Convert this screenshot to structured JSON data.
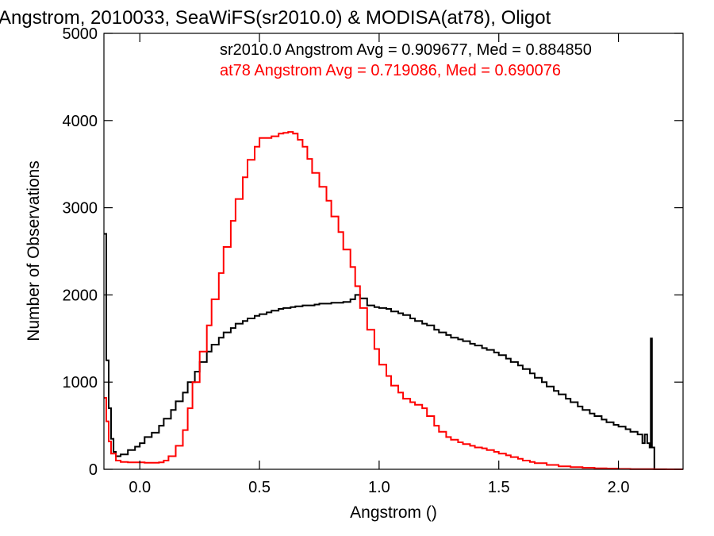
{
  "chart_data": {
    "type": "line",
    "title": "Angstrom, 2010033, SeaWiFS(sr2010.0) & MODISA(at78), Oligot",
    "xlabel": "Angstrom ()",
    "ylabel": "Number of Observations",
    "xlim": [
      -0.15,
      2.27
    ],
    "ylim": [
      0,
      5000
    ],
    "x_ticks": [
      0.0,
      0.5,
      1.0,
      1.5,
      2.0
    ],
    "x_tick_labels": [
      "0.0",
      "0.5",
      "1.0",
      "1.5",
      "2.0"
    ],
    "y_ticks": [
      0,
      1000,
      2000,
      3000,
      4000,
      5000
    ],
    "y_tick_labels": [
      "0",
      "1000",
      "2000",
      "3000",
      "4000",
      "5000"
    ],
    "legend_placement": "top-right",
    "annotations": [
      {
        "text": "sr2010.0 Angstrom Avg = 0.909677, Med = 0.884850",
        "color": "#000000"
      },
      {
        "text": "at78 Angstrom Avg = 0.719086, Med = 0.690076",
        "color": "#ff0000"
      }
    ],
    "series": [
      {
        "name": "sr2010.0",
        "color": "#000000",
        "x": [
          -0.15,
          -0.14,
          -0.13,
          -0.12,
          -0.11,
          -0.1,
          -0.08,
          -0.05,
          -0.02,
          0.0,
          0.02,
          0.05,
          0.08,
          0.1,
          0.13,
          0.15,
          0.18,
          0.2,
          0.23,
          0.25,
          0.28,
          0.3,
          0.33,
          0.35,
          0.38,
          0.4,
          0.43,
          0.45,
          0.48,
          0.5,
          0.53,
          0.55,
          0.58,
          0.6,
          0.63,
          0.65,
          0.68,
          0.7,
          0.73,
          0.75,
          0.78,
          0.8,
          0.83,
          0.85,
          0.88,
          0.9,
          0.92,
          0.95,
          0.98,
          1.0,
          1.03,
          1.05,
          1.08,
          1.1,
          1.13,
          1.15,
          1.18,
          1.2,
          1.23,
          1.25,
          1.28,
          1.3,
          1.33,
          1.35,
          1.38,
          1.4,
          1.43,
          1.45,
          1.48,
          1.5,
          1.53,
          1.55,
          1.58,
          1.6,
          1.63,
          1.65,
          1.68,
          1.7,
          1.73,
          1.75,
          1.78,
          1.8,
          1.83,
          1.85,
          1.88,
          1.9,
          1.93,
          1.95,
          1.98,
          2.0,
          2.03,
          2.05,
          2.08,
          2.1,
          2.11,
          2.12,
          2.13,
          2.135,
          2.14,
          2.15,
          2.16,
          2.2,
          2.27
        ],
        "values": [
          2700,
          1250,
          700,
          350,
          200,
          150,
          170,
          220,
          260,
          300,
          370,
          420,
          500,
          580,
          680,
          780,
          880,
          1000,
          1120,
          1230,
          1350,
          1430,
          1510,
          1570,
          1620,
          1670,
          1700,
          1730,
          1760,
          1780,
          1800,
          1820,
          1840,
          1850,
          1860,
          1870,
          1880,
          1880,
          1890,
          1900,
          1900,
          1910,
          1910,
          1920,
          1950,
          2000,
          1960,
          1880,
          1860,
          1850,
          1840,
          1810,
          1790,
          1770,
          1730,
          1700,
          1670,
          1650,
          1600,
          1570,
          1540,
          1510,
          1490,
          1470,
          1440,
          1420,
          1390,
          1370,
          1340,
          1310,
          1270,
          1230,
          1190,
          1150,
          1100,
          1050,
          1000,
          950,
          900,
          860,
          810,
          770,
          720,
          680,
          640,
          610,
          570,
          540,
          510,
          490,
          460,
          430,
          400,
          300,
          400,
          300,
          250,
          1500,
          250,
          0,
          0,
          0,
          0
        ]
      },
      {
        "name": "at78",
        "color": "#ff0000",
        "x": [
          -0.15,
          -0.14,
          -0.13,
          -0.12,
          -0.1,
          -0.08,
          -0.05,
          -0.02,
          0.0,
          0.02,
          0.05,
          0.08,
          0.1,
          0.12,
          0.15,
          0.18,
          0.2,
          0.22,
          0.25,
          0.28,
          0.3,
          0.33,
          0.35,
          0.38,
          0.4,
          0.43,
          0.45,
          0.48,
          0.5,
          0.53,
          0.55,
          0.58,
          0.6,
          0.62,
          0.64,
          0.66,
          0.68,
          0.7,
          0.72,
          0.75,
          0.78,
          0.8,
          0.83,
          0.85,
          0.88,
          0.9,
          0.92,
          0.95,
          0.98,
          1.0,
          1.03,
          1.05,
          1.08,
          1.1,
          1.13,
          1.15,
          1.18,
          1.2,
          1.23,
          1.25,
          1.28,
          1.3,
          1.33,
          1.35,
          1.38,
          1.4,
          1.43,
          1.45,
          1.48,
          1.5,
          1.53,
          1.55,
          1.58,
          1.6,
          1.63,
          1.65,
          1.7,
          1.75,
          1.8,
          1.85,
          1.9,
          1.95,
          2.0,
          2.05,
          2.1,
          2.15,
          2.2,
          2.27
        ],
        "values": [
          820,
          550,
          320,
          180,
          100,
          85,
          80,
          80,
          80,
          75,
          75,
          80,
          100,
          150,
          270,
          450,
          700,
          1000,
          1350,
          1650,
          1950,
          2250,
          2550,
          2850,
          3100,
          3350,
          3550,
          3700,
          3800,
          3800,
          3820,
          3850,
          3860,
          3870,
          3850,
          3780,
          3700,
          3560,
          3400,
          3240,
          3080,
          2900,
          2720,
          2520,
          2320,
          2100,
          1850,
          1600,
          1380,
          1200,
          1070,
          960,
          880,
          810,
          770,
          740,
          700,
          610,
          500,
          430,
          370,
          340,
          310,
          290,
          270,
          250,
          240,
          220,
          200,
          180,
          160,
          140,
          120,
          100,
          85,
          70,
          50,
          35,
          25,
          18,
          12,
          8,
          5,
          3,
          2,
          1,
          0,
          0
        ]
      }
    ]
  }
}
